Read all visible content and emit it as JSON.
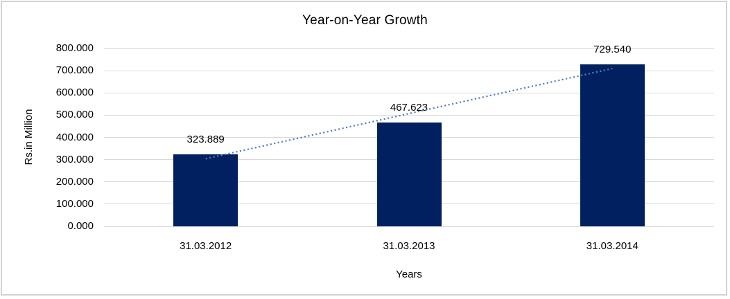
{
  "title": "Year-on-Year Growth",
  "chart_data": {
    "type": "bar",
    "title": "Year-on-Year Growth",
    "categories": [
      "31.03.2012",
      "31.03.2013",
      "31.03.2014"
    ],
    "values": [
      323.889,
      467.623,
      729.54
    ],
    "data_labels": [
      "323.889",
      "467.623",
      "729.540"
    ],
    "xlabel": "Years",
    "ylabel": "Rs.in Million",
    "ylim": [
      0,
      800
    ],
    "yticks": [
      0,
      100,
      200,
      300,
      400,
      500,
      600,
      700,
      800
    ],
    "ytick_labels": [
      "0.000",
      "100.000",
      "200.000",
      "300.000",
      "400.000",
      "500.000",
      "600.000",
      "700.000",
      "800.000"
    ],
    "grid": true,
    "legend": "none",
    "bar_color": "#002060",
    "gridline_color": "#d9d9d9",
    "trendline": {
      "type": "linear",
      "style": "dotted",
      "color": "#4f81bd"
    }
  }
}
